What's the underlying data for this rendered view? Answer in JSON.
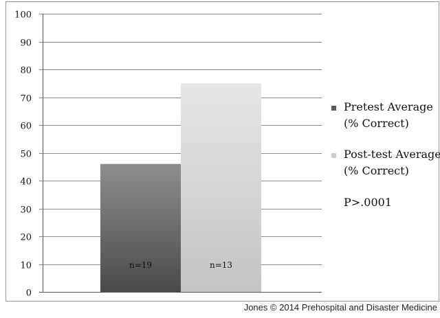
{
  "chart_data": {
    "type": "bar",
    "categories": [
      "Pretest Average (% Correct)",
      "Post-test Average (% Correct)"
    ],
    "values": [
      46,
      75
    ],
    "bar_labels": [
      "n=19",
      "n=13"
    ],
    "legend": [
      {
        "line1": "Pretest Average",
        "line2": "(% Correct)",
        "color": "#5a5a5a"
      },
      {
        "line1": "Post-test Average",
        "line2": "(% Correct)",
        "color": "#cccccc"
      }
    ],
    "legend_position": "right",
    "annotation": "P>.0001",
    "title": "",
    "xlabel": "",
    "ylabel": "",
    "ylim": [
      0,
      100
    ],
    "yticks": [
      0,
      10,
      20,
      30,
      40,
      50,
      60,
      70,
      80,
      90,
      100
    ],
    "grid": true
  },
  "credit": "Jones © 2014 Prehospital and Disaster Medicine"
}
